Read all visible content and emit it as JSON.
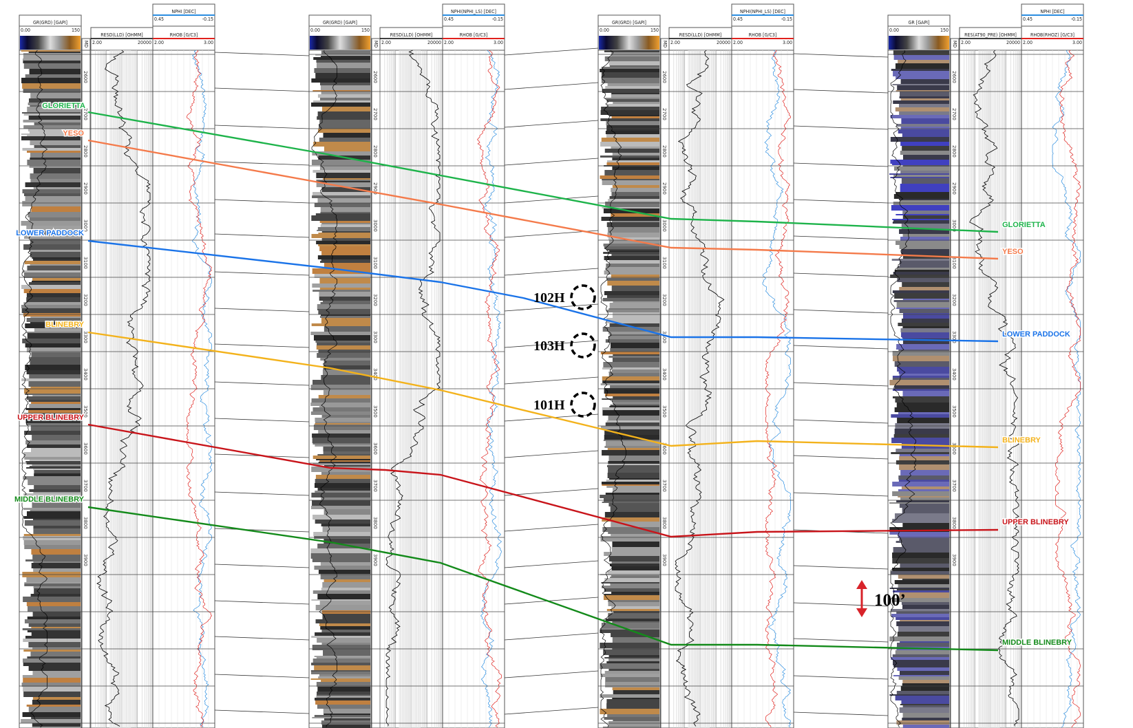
{
  "wells": [
    {
      "gr_label": "GR(GRD) [GAPI]",
      "gr_min": "0.00",
      "gr_max": "150",
      "res_label": "RESD(LLD) [OHMM]",
      "res_min": "2.00",
      "res_max": "20000",
      "nphi_label": "NPHI [DEC]",
      "nphi_min": "0.45",
      "nphi_max": "-0.15",
      "rhob_label": "RHOB [G/C3]",
      "rhob_min": "2.00",
      "rhob_max": "3.00",
      "depth_unit": "MD",
      "depth_ticks": [
        "2600",
        "2700",
        "2800",
        "2900",
        "3000",
        "3100",
        "3200",
        "3300",
        "3400",
        "3500",
        "3600",
        "3700",
        "3800",
        "3900"
      ]
    },
    {
      "gr_label": "GR(GRD) [GAPI]",
      "gr_min": "0.00",
      "gr_max": "150",
      "res_label": "RESD(LLD) [OHMM]",
      "res_min": "2.00",
      "res_max": "20000",
      "nphi_label": "NPHI(NPHI_LS) [DEC]",
      "nphi_min": "0.45",
      "nphi_max": "-0.15",
      "rhob_label": "RHOB [G/C3]",
      "rhob_min": "2.00",
      "rhob_max": "3.00",
      "depth_unit": "MD",
      "depth_ticks": [
        "2600",
        "2700",
        "2800",
        "2900",
        "3000",
        "3100",
        "3200",
        "3300",
        "3400",
        "3500",
        "3600",
        "3700",
        "3800",
        "3900"
      ]
    },
    {
      "gr_label": "GR(GRD) [GAPI]",
      "gr_min": "0.00",
      "gr_max": "150",
      "res_label": "RESD(LLD) [OHMM]",
      "res_min": "2.00",
      "res_max": "20000",
      "nphi_label": "NPHI(NPHI_LS) [DEC]",
      "nphi_min": "0.45",
      "nphi_max": "-0.15",
      "rhob_label": "RHOB [G/C3]",
      "rhob_min": "2.00",
      "rhob_max": "3.00",
      "depth_unit": "MD",
      "depth_ticks": [
        "2600",
        "2700",
        "2800",
        "2900",
        "3000",
        "3100",
        "3200",
        "3300",
        "3400",
        "3500",
        "3600",
        "3700",
        "3800",
        "3900"
      ]
    },
    {
      "gr_label": "GR [GAPI]",
      "gr_min": "0.00",
      "gr_max": "150",
      "res_label": "RES(AT90_PRE) [OHMM]",
      "res_min": "2.00",
      "res_max": "20000",
      "nphi_label": "NPHI [DEC]",
      "nphi_min": "0.45",
      "nphi_max": "-0.15",
      "rhob_label": "RHOB(RHOZ) [G/C3]",
      "rhob_min": "2.00",
      "rhob_max": "3.00",
      "depth_unit": "MD",
      "depth_ticks": [
        "2600",
        "2700",
        "2800",
        "2900",
        "3000",
        "3100",
        "3200",
        "3300",
        "3400",
        "3500",
        "3600",
        "3700",
        "3800",
        "3900"
      ]
    }
  ],
  "tops": [
    {
      "name": "GLORIETTA",
      "color": "#1db34a"
    },
    {
      "name": "YESO",
      "color": "#f47a4a"
    },
    {
      "name": "LOWER PADDOCK",
      "color": "#1a73e8"
    },
    {
      "name": "BLINEBRY",
      "color": "#f3b21b"
    },
    {
      "name": "UPPER BLINEBRY",
      "color": "#c8141a"
    },
    {
      "name": "MIDDLE BLINEBRY",
      "color": "#138a1a"
    }
  ],
  "wellbores": [
    {
      "label": "102H"
    },
    {
      "label": "103H"
    },
    {
      "label": "101H"
    }
  ],
  "scale_bar": {
    "label": "100’",
    "color": "#d8232a"
  }
}
